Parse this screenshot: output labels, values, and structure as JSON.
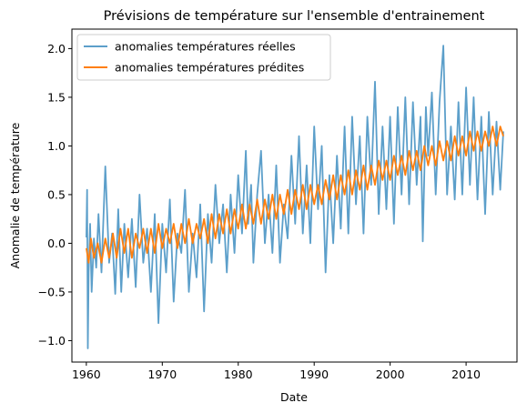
{
  "chart_data": {
    "type": "line",
    "title": "Prévisions de température sur l'ensemble d'entrainement",
    "xlabel": "Date",
    "ylabel": "Anomalie de température",
    "xlim": [
      1958.1,
      2016.7
    ],
    "ylim": [
      -1.22,
      2.2
    ],
    "x_ticks": [
      1960,
      1970,
      1980,
      1990,
      2000,
      2010
    ],
    "y_ticks": [
      -1.0,
      -0.5,
      0.0,
      0.5,
      1.0,
      1.5,
      2.0
    ],
    "x_tick_labels": [
      "1960",
      "1970",
      "1980",
      "1990",
      "2000",
      "2010"
    ],
    "y_tick_labels": [
      "−1.0",
      "−0.5",
      "0.0",
      "0.5",
      "1.0",
      "1.5",
      "2.0"
    ],
    "grid": false,
    "legend_position": "top-left",
    "series": [
      {
        "name": "anomalies températures réelles",
        "color": "#5c9fca",
        "x": [
          1960.0,
          1960.1,
          1960.2,
          1960.3,
          1960.5,
          1960.7,
          1961.0,
          1961.3,
          1961.6,
          1962.0,
          1962.5,
          1963.0,
          1963.4,
          1963.8,
          1964.2,
          1964.6,
          1965.0,
          1965.5,
          1966.0,
          1966.5,
          1967.0,
          1967.5,
          1968.0,
          1968.5,
          1969.0,
          1969.5,
          1970.0,
          1970.5,
          1971.0,
          1971.5,
          1972.0,
          1972.5,
          1973.0,
          1973.5,
          1974.0,
          1974.5,
          1975.0,
          1975.5,
          1976.0,
          1976.5,
          1977.0,
          1977.5,
          1978.0,
          1978.5,
          1979.0,
          1979.5,
          1980.0,
          1980.5,
          1981.0,
          1981.3,
          1981.7,
          1982.0,
          1982.5,
          1983.0,
          1983.5,
          1984.0,
          1984.5,
          1985.0,
          1985.5,
          1986.0,
          1986.5,
          1987.0,
          1987.5,
          1988.0,
          1988.5,
          1989.0,
          1989.5,
          1990.0,
          1990.5,
          1991.0,
          1991.5,
          1992.0,
          1992.5,
          1993.0,
          1993.5,
          1994.0,
          1994.5,
          1995.0,
          1995.5,
          1996.0,
          1996.5,
          1997.0,
          1997.5,
          1998.0,
          1998.5,
          1999.0,
          1999.5,
          2000.0,
          2000.5,
          2001.0,
          2001.5,
          2002.0,
          2002.5,
          2003.0,
          2003.5,
          2004.0,
          2004.3,
          2004.7,
          2005.0,
          2005.5,
          2006.0,
          2006.5,
          2007.0,
          2007.5,
          2008.0,
          2008.5,
          2009.0,
          2009.5,
          2010.0,
          2010.5,
          2011.0,
          2011.5,
          2012.0,
          2012.5,
          2013.0,
          2013.5,
          2014.0,
          2014.5,
          2014.9
        ],
        "y": [
          0.06,
          0.55,
          -1.08,
          -0.3,
          0.2,
          -0.5,
          0.05,
          -0.25,
          0.3,
          -0.3,
          0.79,
          -0.2,
          0.1,
          -0.52,
          0.35,
          -0.5,
          0.2,
          -0.35,
          0.25,
          -0.45,
          0.5,
          -0.2,
          0.15,
          -0.5,
          0.3,
          -0.82,
          0.2,
          -0.3,
          0.45,
          -0.6,
          0.1,
          -0.1,
          0.55,
          -0.5,
          0.1,
          -0.35,
          0.4,
          -0.7,
          0.3,
          -0.2,
          0.6,
          0.0,
          0.4,
          -0.3,
          0.5,
          -0.1,
          0.7,
          0.1,
          0.95,
          0.2,
          0.6,
          -0.2,
          0.5,
          0.95,
          0.0,
          0.5,
          -0.1,
          0.8,
          -0.2,
          0.4,
          0.05,
          0.9,
          0.2,
          1.1,
          0.1,
          0.8,
          0.0,
          1.2,
          0.35,
          1.0,
          -0.3,
          0.7,
          0.0,
          0.9,
          0.15,
          1.2,
          0.1,
          1.3,
          0.4,
          1.1,
          0.1,
          1.3,
          0.6,
          1.66,
          0.3,
          1.2,
          0.35,
          1.3,
          0.2,
          1.4,
          0.5,
          1.5,
          0.4,
          1.45,
          0.6,
          1.3,
          0.02,
          1.4,
          0.9,
          1.55,
          0.5,
          1.45,
          2.03,
          0.5,
          1.2,
          0.45,
          1.45,
          0.5,
          1.6,
          0.6,
          1.5,
          0.45,
          1.3,
          0.3,
          1.35,
          0.5,
          1.25,
          0.55,
          1.15
        ]
      },
      {
        "name": "anomalies températures prédites",
        "color": "#ff7f0e",
        "x": [
          1960.0,
          1960.3,
          1960.6,
          1961.0,
          1961.5,
          1962.0,
          1962.5,
          1963.0,
          1963.5,
          1964.0,
          1964.5,
          1965.0,
          1965.5,
          1966.0,
          1966.5,
          1967.0,
          1967.5,
          1968.0,
          1968.5,
          1969.0,
          1969.5,
          1970.0,
          1970.5,
          1971.0,
          1971.5,
          1972.0,
          1972.5,
          1973.0,
          1973.5,
          1974.0,
          1974.5,
          1975.0,
          1975.5,
          1976.0,
          1976.5,
          1977.0,
          1977.5,
          1978.0,
          1978.5,
          1979.0,
          1979.5,
          1980.0,
          1980.5,
          1981.0,
          1981.5,
          1982.0,
          1982.5,
          1983.0,
          1983.5,
          1984.0,
          1984.5,
          1985.0,
          1985.5,
          1986.0,
          1986.5,
          1987.0,
          1987.5,
          1988.0,
          1988.5,
          1989.0,
          1989.5,
          1990.0,
          1990.5,
          1991.0,
          1991.5,
          1992.0,
          1992.5,
          1993.0,
          1993.5,
          1994.0,
          1994.5,
          1995.0,
          1995.5,
          1996.0,
          1996.5,
          1997.0,
          1997.5,
          1998.0,
          1998.5,
          1999.0,
          1999.5,
          2000.0,
          2000.5,
          2001.0,
          2001.5,
          2002.0,
          2002.5,
          2003.0,
          2003.5,
          2004.0,
          2004.5,
          2005.0,
          2005.5,
          2006.0,
          2006.5,
          2007.0,
          2007.5,
          2008.0,
          2008.5,
          2009.0,
          2009.5,
          2010.0,
          2010.5,
          2011.0,
          2011.5,
          2012.0,
          2012.5,
          2013.0,
          2013.5,
          2014.0,
          2014.5,
          2014.9
        ],
        "y": [
          -0.05,
          -0.2,
          0.05,
          -0.15,
          0.0,
          -0.2,
          0.05,
          -0.15,
          0.1,
          -0.15,
          0.15,
          -0.1,
          0.15,
          -0.15,
          0.1,
          -0.05,
          0.15,
          -0.1,
          0.15,
          -0.1,
          0.2,
          -0.05,
          0.15,
          0.0,
          0.2,
          -0.05,
          0.2,
          0.0,
          0.25,
          0.0,
          0.2,
          0.05,
          0.25,
          0.0,
          0.3,
          0.05,
          0.3,
          0.1,
          0.35,
          0.1,
          0.35,
          0.15,
          0.4,
          0.15,
          0.4,
          0.2,
          0.45,
          0.2,
          0.45,
          0.25,
          0.5,
          0.25,
          0.5,
          0.3,
          0.55,
          0.3,
          0.55,
          0.35,
          0.6,
          0.35,
          0.6,
          0.4,
          0.6,
          0.4,
          0.65,
          0.45,
          0.7,
          0.45,
          0.7,
          0.5,
          0.75,
          0.5,
          0.75,
          0.55,
          0.8,
          0.55,
          0.8,
          0.6,
          0.85,
          0.65,
          0.85,
          0.65,
          0.9,
          0.7,
          0.9,
          0.7,
          0.95,
          0.75,
          0.95,
          0.75,
          1.0,
          0.8,
          1.0,
          0.8,
          1.05,
          0.85,
          1.05,
          0.85,
          1.1,
          0.9,
          1.1,
          0.9,
          1.15,
          0.95,
          1.15,
          0.95,
          1.15,
          1.0,
          1.2,
          1.0,
          1.2,
          1.1
        ]
      }
    ]
  }
}
